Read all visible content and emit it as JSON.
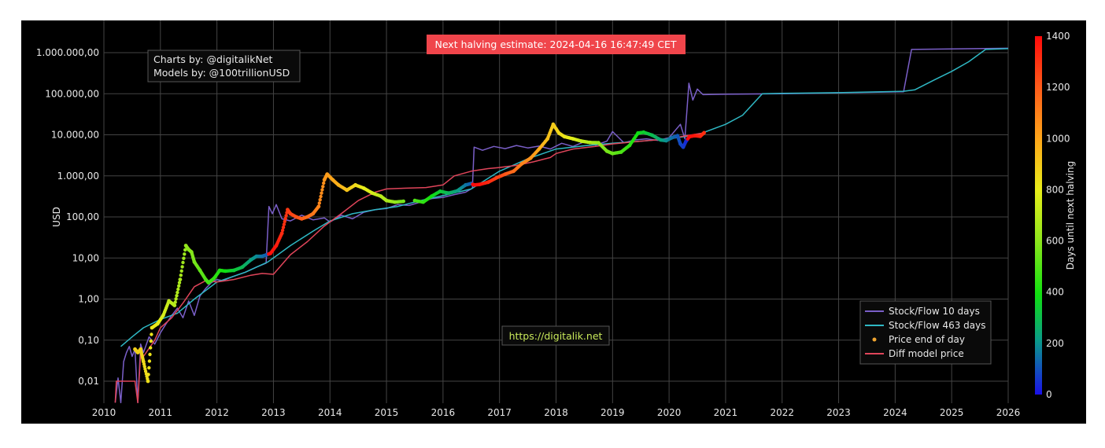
{
  "halving_banner": "Next halving estimate: 2024-04-16 16:47:49 CET",
  "credits": {
    "line1": "Charts by: @digitalikNet",
    "line2": "Models by: @100trillionUSD"
  },
  "watermark_url": "https://digitalik.net",
  "colors": {
    "background": "#000000",
    "grid": "#444444",
    "sf10": "#7a5fc8",
    "sf463": "#2fb8c4",
    "diff_model": "#e0455a",
    "price_dot": "#f0a530",
    "banner_bg": "#f0454b"
  },
  "chart_data": {
    "type": "line",
    "title": "",
    "xlabel": "",
    "ylabel": "USD",
    "y_scale": "log",
    "ylim": [
      0.003,
      2000000
    ],
    "xlim": [
      2010,
      2026
    ],
    "x_ticks": [
      "2010",
      "2011",
      "2012",
      "2013",
      "2014",
      "2015",
      "2016",
      "2017",
      "2018",
      "2019",
      "2020",
      "2021",
      "2022",
      "2023",
      "2024",
      "2025",
      "2026"
    ],
    "y_ticks": [
      {
        "value": 0.01,
        "label": "0,01"
      },
      {
        "value": 0.1,
        "label": "0,10"
      },
      {
        "value": 1,
        "label": "1,00"
      },
      {
        "value": 10,
        "label": "10,00"
      },
      {
        "value": 100,
        "label": "100,00"
      },
      {
        "value": 1000,
        "label": "1.000,00"
      },
      {
        "value": 10000,
        "label": "10.000,00"
      },
      {
        "value": 100000,
        "label": "100.000,00"
      },
      {
        "value": 1000000,
        "label": "1.000.000,00"
      }
    ],
    "colorbar": {
      "title": "Days until next halving",
      "min": 0,
      "max": 1400,
      "ticks": [
        "0",
        "200",
        "400",
        "600",
        "800",
        "1000",
        "1200",
        "1400"
      ]
    },
    "legend": [
      "Stock/Flow 10 days",
      "Stock/Flow 463 days",
      "Price end of day",
      "Diff model price"
    ],
    "legend_position": "bottom-right",
    "series": [
      {
        "name": "Stock/Flow 10 days",
        "points": [
          [
            2010.2,
            0.003
          ],
          [
            2010.25,
            0.012
          ],
          [
            2010.3,
            0.003
          ],
          [
            2010.35,
            0.03
          ],
          [
            2010.4,
            0.05
          ],
          [
            2010.45,
            0.07
          ],
          [
            2010.5,
            0.04
          ],
          [
            2010.55,
            0.06
          ],
          [
            2010.6,
            0.003
          ],
          [
            2010.65,
            0.08
          ],
          [
            2010.7,
            0.05
          ],
          [
            2010.8,
            0.12
          ],
          [
            2010.9,
            0.08
          ],
          [
            2011.0,
            0.15
          ],
          [
            2011.1,
            0.25
          ],
          [
            2011.2,
            0.4
          ],
          [
            2011.3,
            0.6
          ],
          [
            2011.4,
            0.35
          ],
          [
            2011.5,
            0.9
          ],
          [
            2011.6,
            0.4
          ],
          [
            2011.7,
            1.2
          ],
          [
            2011.8,
            1.8
          ],
          [
            2011.9,
            2.5
          ],
          [
            2012.0,
            3.0
          ],
          [
            2012.1,
            2.8
          ],
          [
            2012.3,
            3.6
          ],
          [
            2012.5,
            4.5
          ],
          [
            2012.7,
            6.0
          ],
          [
            2012.87,
            7.5
          ],
          [
            2012.92,
            180
          ],
          [
            2012.98,
            120
          ],
          [
            2013.05,
            200
          ],
          [
            2013.15,
            90
          ],
          [
            2013.3,
            80
          ],
          [
            2013.5,
            110
          ],
          [
            2013.7,
            85
          ],
          [
            2013.9,
            95
          ],
          [
            2014.0,
            75
          ],
          [
            2014.2,
            110
          ],
          [
            2014.4,
            90
          ],
          [
            2014.6,
            130
          ],
          [
            2014.8,
            150
          ],
          [
            2015.0,
            160
          ],
          [
            2015.2,
            200
          ],
          [
            2015.4,
            190
          ],
          [
            2015.6,
            230
          ],
          [
            2015.8,
            280
          ],
          [
            2016.0,
            300
          ],
          [
            2016.2,
            350
          ],
          [
            2016.4,
            400
          ],
          [
            2016.52,
            500
          ],
          [
            2016.55,
            5000
          ],
          [
            2016.7,
            4200
          ],
          [
            2016.9,
            5200
          ],
          [
            2017.1,
            4600
          ],
          [
            2017.3,
            5500
          ],
          [
            2017.5,
            4800
          ],
          [
            2017.7,
            5300
          ],
          [
            2017.9,
            4500
          ],
          [
            2018.1,
            6200
          ],
          [
            2018.3,
            5200
          ],
          [
            2018.5,
            6800
          ],
          [
            2018.7,
            5600
          ],
          [
            2018.9,
            7000
          ],
          [
            2019.0,
            12000
          ],
          [
            2019.2,
            6400
          ],
          [
            2019.4,
            7500
          ],
          [
            2019.6,
            8000
          ],
          [
            2019.8,
            7300
          ],
          [
            2020.0,
            8500
          ],
          [
            2020.2,
            18000
          ],
          [
            2020.28,
            8000
          ],
          [
            2020.35,
            180000
          ],
          [
            2020.42,
            70000
          ],
          [
            2020.5,
            130000
          ],
          [
            2020.6,
            95000
          ],
          [
            2021.0,
            97000
          ],
          [
            2022.0,
            100000
          ],
          [
            2023.0,
            105000
          ],
          [
            2024.15,
            112000
          ],
          [
            2024.29,
            1200000
          ],
          [
            2025.0,
            1230000
          ],
          [
            2026.0,
            1280000
          ]
        ]
      },
      {
        "name": "Stock/Flow 463 days",
        "points": [
          [
            2010.3,
            0.07
          ],
          [
            2010.5,
            0.12
          ],
          [
            2010.7,
            0.2
          ],
          [
            2011.0,
            0.32
          ],
          [
            2011.3,
            0.45
          ],
          [
            2011.6,
            1.0
          ],
          [
            2012.0,
            2.6
          ],
          [
            2012.5,
            4.5
          ],
          [
            2012.9,
            8.0
          ],
          [
            2013.3,
            20
          ],
          [
            2013.7,
            45
          ],
          [
            2014.0,
            80
          ],
          [
            2014.4,
            120
          ],
          [
            2014.8,
            150
          ],
          [
            2015.2,
            180
          ],
          [
            2015.6,
            250
          ],
          [
            2016.0,
            330
          ],
          [
            2016.5,
            480
          ],
          [
            2017.0,
            1300
          ],
          [
            2017.5,
            2600
          ],
          [
            2018.0,
            4500
          ],
          [
            2018.5,
            5400
          ],
          [
            2019.0,
            6200
          ],
          [
            2019.5,
            7000
          ],
          [
            2020.0,
            8000
          ],
          [
            2020.5,
            10000
          ],
          [
            2021.0,
            18000
          ],
          [
            2021.3,
            30000
          ],
          [
            2021.65,
            100000
          ],
          [
            2022.0,
            102000
          ],
          [
            2023.0,
            106000
          ],
          [
            2024.15,
            115000
          ],
          [
            2024.35,
            125000
          ],
          [
            2024.7,
            220000
          ],
          [
            2025.0,
            350000
          ],
          [
            2025.3,
            600000
          ],
          [
            2025.6,
            1200000
          ],
          [
            2026.0,
            1250000
          ]
        ]
      },
      {
        "name": "Diff model price",
        "points": [
          [
            2010.2,
            0.003
          ],
          [
            2010.22,
            0.01
          ],
          [
            2010.55,
            0.01
          ],
          [
            2010.6,
            0.003
          ],
          [
            2010.65,
            0.05
          ],
          [
            2010.7,
            0.04
          ],
          [
            2010.9,
            0.1
          ],
          [
            2011.0,
            0.2
          ],
          [
            2011.2,
            0.35
          ],
          [
            2011.4,
            0.8
          ],
          [
            2011.6,
            2.0
          ],
          [
            2011.8,
            2.8
          ],
          [
            2012.0,
            2.6
          ],
          [
            2012.3,
            3.0
          ],
          [
            2012.6,
            3.8
          ],
          [
            2012.8,
            4.2
          ],
          [
            2013.0,
            4.0
          ],
          [
            2013.3,
            12
          ],
          [
            2013.6,
            25
          ],
          [
            2013.9,
            60
          ],
          [
            2014.2,
            120
          ],
          [
            2014.5,
            250
          ],
          [
            2014.8,
            400
          ],
          [
            2015.0,
            480
          ],
          [
            2015.3,
            500
          ],
          [
            2015.7,
            520
          ],
          [
            2016.0,
            600
          ],
          [
            2016.2,
            1000
          ],
          [
            2016.5,
            1300
          ],
          [
            2016.8,
            1500
          ],
          [
            2017.0,
            1600
          ],
          [
            2017.3,
            1800
          ],
          [
            2017.6,
            2200
          ],
          [
            2017.9,
            2800
          ],
          [
            2018.0,
            3500
          ],
          [
            2018.3,
            4500
          ],
          [
            2018.7,
            5200
          ],
          [
            2019.0,
            6000
          ],
          [
            2019.5,
            7000
          ],
          [
            2020.0,
            8000
          ],
          [
            2020.3,
            9500
          ],
          [
            2020.6,
            11000
          ]
        ]
      },
      {
        "name": "Price end of day",
        "color_by": "Days until next halving",
        "points": [
          [
            2010.55,
            0.06,
            890
          ],
          [
            2010.6,
            0.05,
            880
          ],
          [
            2010.65,
            0.06,
            875
          ],
          [
            2010.7,
            0.03,
            860
          ],
          [
            2010.78,
            0.01,
            840
          ],
          [
            2010.85,
            0.2,
            820
          ],
          [
            2010.95,
            0.25,
            800
          ],
          [
            2011.05,
            0.4,
            760
          ],
          [
            2011.15,
            0.9,
            720
          ],
          [
            2011.25,
            0.7,
            690
          ],
          [
            2011.35,
            3.0,
            660
          ],
          [
            2011.45,
            20,
            620
          ],
          [
            2011.5,
            16,
            600
          ],
          [
            2011.55,
            14,
            590
          ],
          [
            2011.6,
            8,
            570
          ],
          [
            2011.7,
            5,
            530
          ],
          [
            2011.8,
            3,
            500
          ],
          [
            2011.85,
            2.5,
            480
          ],
          [
            2011.95,
            3.2,
            450
          ],
          [
            2012.05,
            5,
            420
          ],
          [
            2012.15,
            4.8,
            390
          ],
          [
            2012.3,
            5,
            340
          ],
          [
            2012.45,
            6,
            290
          ],
          [
            2012.6,
            9,
            230
          ],
          [
            2012.7,
            11,
            190
          ],
          [
            2012.8,
            11,
            150
          ],
          [
            2012.88,
            12,
            120
          ],
          [
            2012.95,
            13,
            1390
          ],
          [
            2013.05,
            20,
            1360
          ],
          [
            2013.15,
            40,
            1320
          ],
          [
            2013.25,
            150,
            1290
          ],
          [
            2013.3,
            120,
            1270
          ],
          [
            2013.4,
            100,
            1230
          ],
          [
            2013.5,
            90,
            1200
          ],
          [
            2013.6,
            100,
            1160
          ],
          [
            2013.7,
            120,
            1130
          ],
          [
            2013.8,
            180,
            1090
          ],
          [
            2013.9,
            800,
            1050
          ],
          [
            2013.95,
            1100,
            1030
          ],
          [
            2014.05,
            800,
            1000
          ],
          [
            2014.15,
            600,
            970
          ],
          [
            2014.3,
            450,
            920
          ],
          [
            2014.45,
            600,
            860
          ],
          [
            2014.6,
            500,
            800
          ],
          [
            2014.75,
            380,
            760
          ],
          [
            2014.9,
            320,
            700
          ],
          [
            2015.0,
            250,
            670
          ],
          [
            2015.15,
            230,
            620
          ],
          [
            2015.3,
            240,
            560
          ],
          [
            2015.5,
            250,
            500
          ],
          [
            2015.65,
            230,
            450
          ],
          [
            2015.8,
            320,
            390
          ],
          [
            2015.95,
            420,
            340
          ],
          [
            2016.1,
            380,
            280
          ],
          [
            2016.25,
            430,
            230
          ],
          [
            2016.4,
            600,
            160
          ],
          [
            2016.5,
            650,
            120
          ],
          [
            2016.55,
            600,
            1400
          ],
          [
            2016.65,
            620,
            1380
          ],
          [
            2016.8,
            700,
            1330
          ],
          [
            2016.95,
            900,
            1270
          ],
          [
            2017.1,
            1100,
            1220
          ],
          [
            2017.25,
            1300,
            1160
          ],
          [
            2017.4,
            2000,
            1100
          ],
          [
            2017.55,
            2700,
            1050
          ],
          [
            2017.7,
            4500,
            990
          ],
          [
            2017.85,
            8000,
            930
          ],
          [
            2017.95,
            18000,
            900
          ],
          [
            2018.05,
            11000,
            870
          ],
          [
            2018.15,
            9000,
            830
          ],
          [
            2018.3,
            8000,
            780
          ],
          [
            2018.45,
            7000,
            720
          ],
          [
            2018.6,
            6500,
            680
          ],
          [
            2018.75,
            6400,
            620
          ],
          [
            2018.9,
            4000,
            570
          ],
          [
            2019.0,
            3500,
            540
          ],
          [
            2019.15,
            3800,
            500
          ],
          [
            2019.3,
            5500,
            440
          ],
          [
            2019.45,
            11000,
            390
          ],
          [
            2019.55,
            11500,
            350
          ],
          [
            2019.7,
            9800,
            300
          ],
          [
            2019.85,
            7500,
            240
          ],
          [
            2019.95,
            7200,
            200
          ],
          [
            2020.05,
            8500,
            150
          ],
          [
            2020.15,
            9500,
            110
          ],
          [
            2020.2,
            6000,
            90
          ],
          [
            2020.25,
            5000,
            70
          ],
          [
            2020.3,
            7000,
            40
          ],
          [
            2020.36,
            9000,
            1400
          ],
          [
            2020.45,
            9500,
            1370
          ],
          [
            2020.55,
            9200,
            1340
          ],
          [
            2020.62,
            11200,
            1310
          ]
        ]
      }
    ]
  }
}
